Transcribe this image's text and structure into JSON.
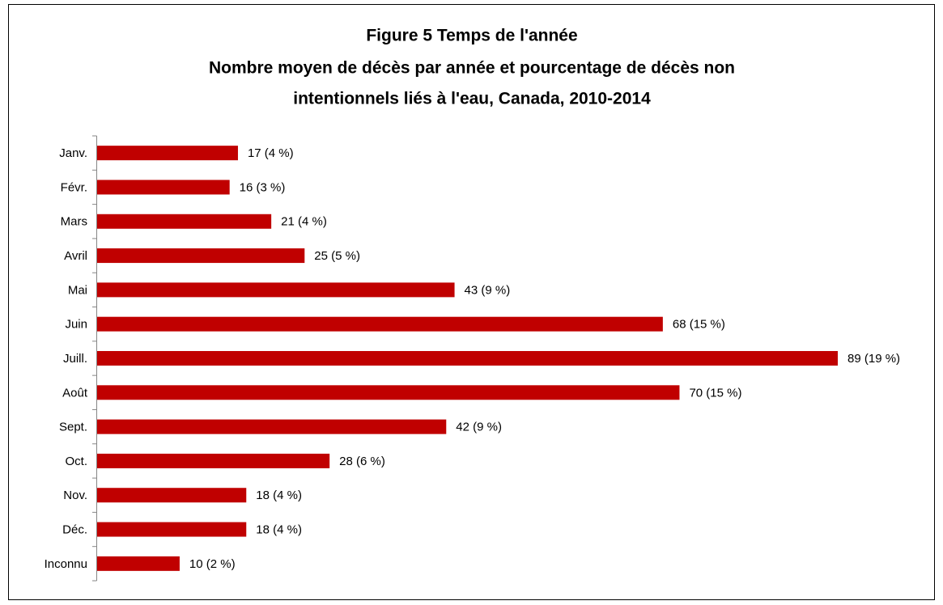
{
  "chart_data": {
    "type": "bar",
    "orientation": "horizontal",
    "title": "Figure 5 Temps de l'année",
    "subtitle": [
      "Nombre moyen de décès par année et pourcentage de décès non",
      "intentionnels liés à l'eau, Canada, 2010-2014"
    ],
    "categories": [
      "Janv.",
      "Févr.",
      "Mars",
      "Avril",
      "Mai",
      "Juin",
      "Juill.",
      "Août",
      "Sept.",
      "Oct.",
      "Nov.",
      "Déc.",
      "Inconnu"
    ],
    "values": [
      17,
      16,
      21,
      25,
      43,
      68,
      89,
      70,
      42,
      28,
      18,
      18,
      10
    ],
    "value_labels": [
      "17 (4 %)",
      "16 (3 %)",
      "21 (4 %)",
      "25 (5 %)",
      "43 (9 %)",
      "68 (15 %)",
      "89 (19 %)",
      "70 (15 %)",
      "42 (9 %)",
      "28 (6 %)",
      "18 (4 %)",
      "18 (4 %)",
      "10 (2 %)"
    ],
    "color": "#c00000"
  }
}
